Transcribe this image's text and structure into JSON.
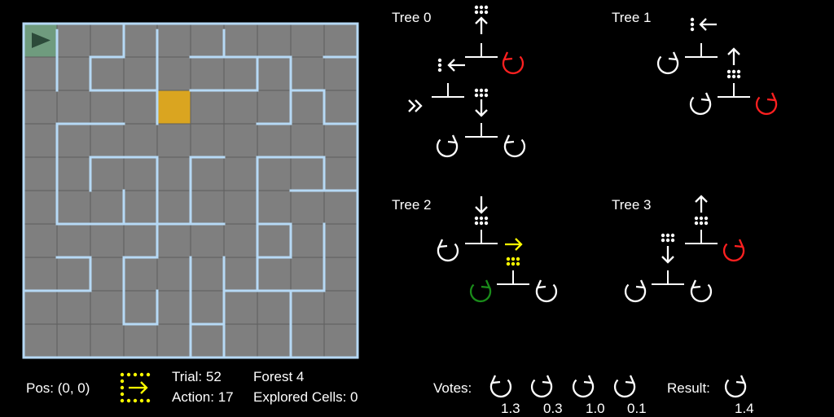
{
  "maze": {
    "rows": 10,
    "cols": 10,
    "agent_cell": [
      0,
      0
    ],
    "goal_cell": [
      2,
      4
    ],
    "colors": {
      "cell": "#7f7f7f",
      "grid_line": "#5e5e5e",
      "wall": "#b6d9f5",
      "start_cell": "#6f9b7e",
      "goal": "#daa520",
      "agent": "#2c4a3a"
    },
    "walls": [
      [
        1,
        0.2,
        1,
        2
      ],
      [
        2,
        1,
        3,
        1
      ],
      [
        2,
        1,
        2,
        2
      ],
      [
        3,
        0,
        3,
        1
      ],
      [
        4,
        0.2,
        4,
        1
      ],
      [
        4,
        1,
        4,
        3
      ],
      [
        5,
        1,
        8,
        1
      ],
      [
        6,
        0.2,
        6,
        1
      ],
      [
        7,
        1,
        7,
        2
      ],
      [
        8,
        1,
        8,
        3
      ],
      [
        9,
        1,
        10,
        1
      ],
      [
        2,
        2,
        4,
        2
      ],
      [
        5,
        2,
        7,
        2
      ],
      [
        8,
        2,
        9,
        2
      ],
      [
        9,
        2,
        9,
        3
      ],
      [
        1,
        3,
        3,
        3
      ],
      [
        7,
        3,
        8,
        3
      ],
      [
        9,
        3,
        10,
        3
      ],
      [
        2,
        4,
        4,
        4
      ],
      [
        2,
        4,
        2,
        5
      ],
      [
        4,
        4,
        4,
        6
      ],
      [
        5,
        4,
        5,
        6
      ],
      [
        5,
        4,
        6,
        4
      ],
      [
        7,
        4,
        9,
        4
      ],
      [
        9,
        4,
        9,
        5
      ],
      [
        1,
        3,
        1,
        6
      ],
      [
        3,
        5,
        3,
        6
      ],
      [
        1,
        6,
        6,
        6
      ],
      [
        7,
        4,
        7,
        8
      ],
      [
        8,
        5,
        10,
        5
      ],
      [
        7,
        6,
        8,
        6
      ],
      [
        8,
        6,
        8,
        7
      ],
      [
        7,
        7,
        8,
        7
      ],
      [
        9,
        6,
        9,
        8
      ],
      [
        4,
        6,
        4,
        7
      ],
      [
        2,
        7,
        2,
        8
      ],
      [
        1,
        7,
        2,
        7
      ],
      [
        3,
        7,
        3,
        9
      ],
      [
        3,
        7,
        4,
        7
      ],
      [
        5,
        7,
        5,
        10
      ],
      [
        4,
        8,
        4,
        9
      ],
      [
        6,
        7,
        6,
        10
      ],
      [
        6,
        8,
        9,
        8
      ],
      [
        8,
        8,
        8,
        10
      ],
      [
        0,
        8,
        2,
        8
      ],
      [
        3,
        9,
        4,
        9
      ],
      [
        5,
        9,
        6,
        9
      ]
    ]
  },
  "status": {
    "pos": "Pos: (0, 0)",
    "trial": "Trial: 52",
    "action": "Action: 17",
    "forest": "Forest 4",
    "explored": "Explored Cells: 0",
    "action_icon": "right-arrow-with-dots-icon",
    "action_icon_color": "#ffff00"
  },
  "trees": [
    {
      "label": "Tree 0"
    },
    {
      "label": "Tree 1"
    },
    {
      "label": "Tree 2"
    },
    {
      "label": "Tree 3"
    }
  ],
  "votes": {
    "label": "Votes:",
    "values": [
      "1.3",
      "0.3",
      "1.0",
      "0.1"
    ],
    "icons": [
      "rotate-left-icon",
      "rotate-right-icon",
      "rotate-right-icon",
      "rotate-right-icon"
    ]
  },
  "result": {
    "label": "Result:",
    "value": "1.4",
    "icon": "rotate-right-icon"
  },
  "colors": {
    "default": "#ffffff",
    "red": "#ff2020",
    "green": "#1a8c1a",
    "yellow": "#ffff00"
  }
}
